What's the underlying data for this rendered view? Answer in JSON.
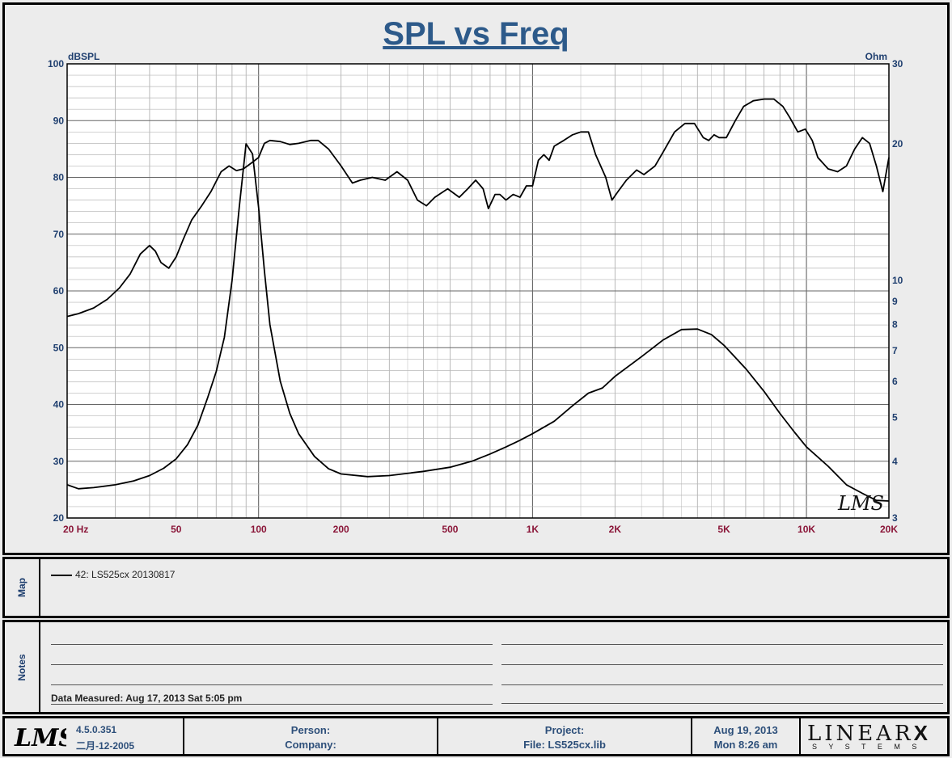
{
  "title": "SPL vs Freq",
  "chart_data": {
    "type": "line",
    "xscale": "log",
    "xlim": [
      20,
      20000
    ],
    "x_ticks": [
      20,
      50,
      100,
      200,
      500,
      1000,
      2000,
      5000,
      10000,
      20000
    ],
    "x_tick_labels": [
      "20  Hz",
      "50",
      "100",
      "200",
      "500",
      "1K",
      "2K",
      "5K",
      "10K",
      "20K"
    ],
    "y_left": {
      "label": "dBSPL",
      "lim": [
        20,
        100
      ],
      "ticks": [
        20,
        30,
        40,
        50,
        60,
        70,
        80,
        90,
        100
      ]
    },
    "y_right": {
      "label": "Ohm",
      "scale": "log",
      "lim": [
        3,
        30
      ],
      "ticks": [
        3,
        4,
        5,
        6,
        7,
        8,
        9,
        10,
        20,
        30
      ]
    },
    "series": [
      {
        "axis": "left",
        "points": [
          [
            20,
            55.5
          ],
          [
            22,
            56
          ],
          [
            25,
            57
          ],
          [
            28,
            58.5
          ],
          [
            31,
            60.5
          ],
          [
            34,
            63
          ],
          [
            37,
            66.5
          ],
          [
            40,
            68
          ],
          [
            42,
            67
          ],
          [
            44,
            65
          ],
          [
            47,
            64
          ],
          [
            50,
            66
          ],
          [
            53,
            69
          ],
          [
            57,
            72.5
          ],
          [
            62,
            75
          ],
          [
            67,
            77.5
          ],
          [
            73,
            81
          ],
          [
            78,
            82
          ],
          [
            83,
            81.2
          ],
          [
            88,
            81.5
          ],
          [
            94,
            82.5
          ],
          [
            100,
            83.5
          ],
          [
            105,
            86
          ],
          [
            110,
            86.5
          ],
          [
            120,
            86.3
          ],
          [
            130,
            85.8
          ],
          [
            140,
            86
          ],
          [
            155,
            86.5
          ],
          [
            165,
            86.5
          ],
          [
            180,
            85
          ],
          [
            200,
            82
          ],
          [
            220,
            79
          ],
          [
            235,
            79.5
          ],
          [
            260,
            80
          ],
          [
            290,
            79.5
          ],
          [
            320,
            81
          ],
          [
            350,
            79.5
          ],
          [
            380,
            76
          ],
          [
            410,
            75
          ],
          [
            440,
            76.5
          ],
          [
            490,
            78
          ],
          [
            540,
            76.5
          ],
          [
            580,
            78
          ],
          [
            620,
            79.5
          ],
          [
            660,
            78
          ],
          [
            690,
            74.5
          ],
          [
            730,
            77
          ],
          [
            760,
            77
          ],
          [
            800,
            76
          ],
          [
            850,
            77
          ],
          [
            900,
            76.5
          ],
          [
            950,
            78.5
          ],
          [
            1000,
            78.5
          ],
          [
            1050,
            83
          ],
          [
            1100,
            84
          ],
          [
            1150,
            83
          ],
          [
            1200,
            85.5
          ],
          [
            1300,
            86.5
          ],
          [
            1400,
            87.5
          ],
          [
            1500,
            88
          ],
          [
            1600,
            88
          ],
          [
            1700,
            84
          ],
          [
            1850,
            80
          ],
          [
            1950,
            76
          ],
          [
            2050,
            77.5
          ],
          [
            2200,
            79.5
          ],
          [
            2400,
            81.3
          ],
          [
            2550,
            80.5
          ],
          [
            2800,
            82
          ],
          [
            3000,
            84.5
          ],
          [
            3300,
            88
          ],
          [
            3600,
            89.5
          ],
          [
            3900,
            89.5
          ],
          [
            4200,
            87
          ],
          [
            4400,
            86.5
          ],
          [
            4600,
            87.5
          ],
          [
            4800,
            87
          ],
          [
            5100,
            87
          ],
          [
            5500,
            90
          ],
          [
            5900,
            92.5
          ],
          [
            6400,
            93.5
          ],
          [
            7000,
            93.8
          ],
          [
            7600,
            93.8
          ],
          [
            8200,
            92.5
          ],
          [
            8700,
            90.5
          ],
          [
            9300,
            88
          ],
          [
            9900,
            88.5
          ],
          [
            10500,
            86.5
          ],
          [
            11000,
            83.5
          ],
          [
            12000,
            81.5
          ],
          [
            13000,
            81
          ],
          [
            14000,
            82
          ],
          [
            15000,
            85
          ],
          [
            16000,
            87
          ],
          [
            17000,
            86
          ],
          [
            18000,
            82
          ],
          [
            19000,
            77.5
          ],
          [
            20000,
            83.5
          ]
        ]
      },
      {
        "axis": "right",
        "points": [
          [
            20,
            3.55
          ],
          [
            22,
            3.48
          ],
          [
            25,
            3.5
          ],
          [
            30,
            3.55
          ],
          [
            35,
            3.62
          ],
          [
            40,
            3.72
          ],
          [
            45,
            3.86
          ],
          [
            50,
            4.05
          ],
          [
            55,
            4.35
          ],
          [
            60,
            4.8
          ],
          [
            65,
            5.5
          ],
          [
            70,
            6.3
          ],
          [
            75,
            7.5
          ],
          [
            80,
            10
          ],
          [
            85,
            14.5
          ],
          [
            90,
            20
          ],
          [
            95,
            19
          ],
          [
            100,
            14.5
          ],
          [
            105,
            10.5
          ],
          [
            110,
            8
          ],
          [
            120,
            6
          ],
          [
            130,
            5.1
          ],
          [
            140,
            4.6
          ],
          [
            160,
            4.1
          ],
          [
            180,
            3.85
          ],
          [
            200,
            3.75
          ],
          [
            250,
            3.7
          ],
          [
            300,
            3.72
          ],
          [
            400,
            3.8
          ],
          [
            500,
            3.88
          ],
          [
            600,
            4
          ],
          [
            700,
            4.15
          ],
          [
            800,
            4.3
          ],
          [
            900,
            4.45
          ],
          [
            1000,
            4.6
          ],
          [
            1200,
            4.9
          ],
          [
            1400,
            5.3
          ],
          [
            1600,
            5.65
          ],
          [
            1800,
            5.8
          ],
          [
            2000,
            6.15
          ],
          [
            2500,
            6.8
          ],
          [
            3000,
            7.4
          ],
          [
            3500,
            7.8
          ],
          [
            4000,
            7.82
          ],
          [
            4500,
            7.6
          ],
          [
            5000,
            7.2
          ],
          [
            6000,
            6.4
          ],
          [
            7000,
            5.7
          ],
          [
            8000,
            5.1
          ],
          [
            9000,
            4.65
          ],
          [
            10000,
            4.3
          ],
          [
            12000,
            3.9
          ],
          [
            14000,
            3.55
          ],
          [
            16000,
            3.4
          ],
          [
            18000,
            3.28
          ],
          [
            20000,
            3.27
          ]
        ]
      }
    ]
  },
  "map": {
    "side_label": "Map",
    "entry": "42: LS525cx   20130817"
  },
  "notes": {
    "side_label": "Notes",
    "data_measured": "Data Measured: Aug 17, 2013  Sat  5:05 pm"
  },
  "footer": {
    "version": "4.5.0.351",
    "build_date": "二月-12-2005",
    "person_label": "Person:",
    "company_label": "Company:",
    "project_label": "Project:",
    "file_label": "File: LS525cx.lib",
    "date": "Aug 19, 2013",
    "time": "Mon  8:26 am",
    "brand_top": "LINEAR",
    "brand_mark": "X",
    "brand_bottom": "S Y S T E M S"
  },
  "signature": "LMS",
  "colors": {
    "title": "#2d5a8a",
    "axis_text": "#1f3f6f",
    "tick_text": "#8a1538",
    "curve": "#000000"
  }
}
